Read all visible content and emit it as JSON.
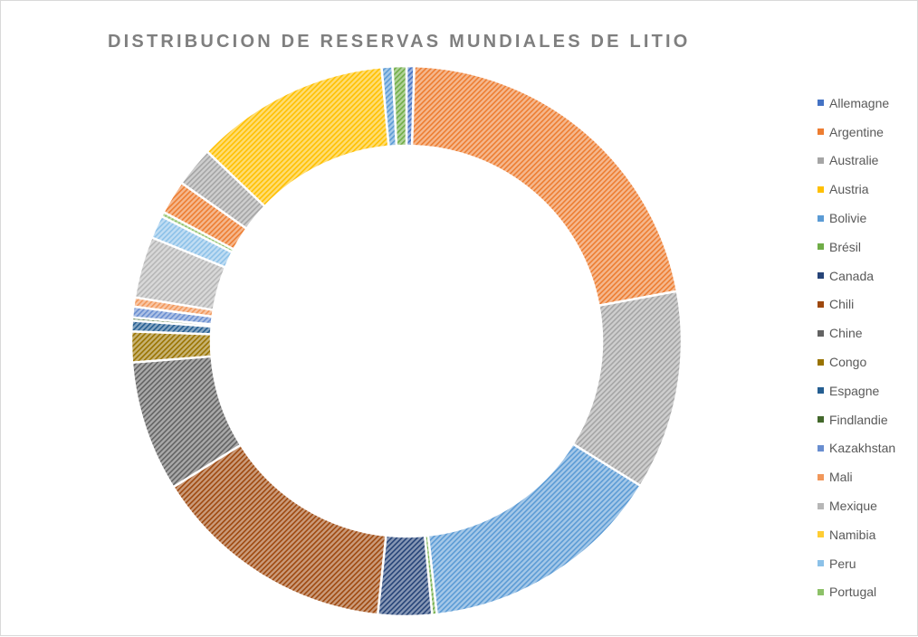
{
  "chart_data": {
    "type": "pie",
    "variant": "doughnut",
    "title": "DISTRIBUCION DE RESERVAS MUNDIALES DE LITIO",
    "legend_position": "right",
    "categories": [
      "Allemagne",
      "Argentine",
      "Australie",
      "Austria",
      "Bolivie",
      "Brésil",
      "Canada",
      "Chili",
      "Chine",
      "Congo",
      "Espagne",
      "Findlandie",
      "Kazakhstan",
      "Mali",
      "Mexique",
      "Namibia",
      "Peru",
      "Portugal"
    ],
    "values": [
      0.5,
      24.0,
      13.0,
      0.0,
      16.0,
      0.3,
      3.5,
      16.0,
      8.5,
      2.0,
      0.7,
      0.2,
      0.7,
      0.6,
      4.0,
      0.0,
      1.5,
      0.3
    ],
    "extra_slices": [
      {
        "value": 2.2,
        "color": "#ed7d31"
      },
      {
        "value": 2.6,
        "color": "#a5a5a5"
      },
      {
        "value": 12.7,
        "color": "#ffc000"
      },
      {
        "value": 0.7,
        "color": "#5b9bd5"
      },
      {
        "value": 0.9,
        "color": "#70ad47"
      }
    ],
    "colors": [
      "#4472c4",
      "#ed7d31",
      "#a5a5a5",
      "#ffc000",
      "#5b9bd5",
      "#70ad47",
      "#264478",
      "#9e480e",
      "#636363",
      "#997300",
      "#255e91",
      "#43682b",
      "#698ed0",
      "#f1975a",
      "#b7b7b7",
      "#ffcd33",
      "#8cc1e8",
      "#8dc168"
    ],
    "pattern": "diagonal-hatch"
  }
}
